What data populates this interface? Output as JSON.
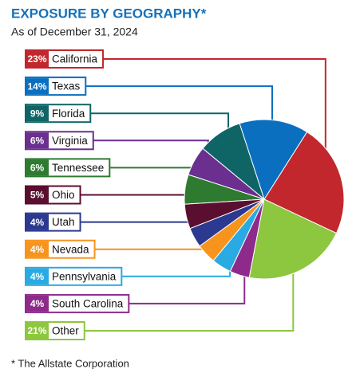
{
  "chart_data": {
    "type": "pie",
    "title": "EXPOSURE BY GEOGRAPHY*",
    "subtitle": "As of December 31, 2024",
    "footnote": "* The Allstate Corporation",
    "categories": [
      "California",
      "Texas",
      "Florida",
      "Virginia",
      "Tennessee",
      "Ohio",
      "Utah",
      "Nevada",
      "Pennsylvania",
      "South Carolina",
      "Other"
    ],
    "values": [
      23,
      14,
      9,
      6,
      6,
      5,
      4,
      4,
      4,
      4,
      21
    ],
    "value_labels": [
      "23%",
      "14%",
      "9%",
      "6%",
      "6%",
      "5%",
      "4%",
      "4%",
      "4%",
      "4%",
      "21%"
    ],
    "colors": [
      "#c1272d",
      "#0b6fc0",
      "#0f6566",
      "#6a2f8f",
      "#2e7a30",
      "#5b0f30",
      "#2b3990",
      "#f7941d",
      "#2aaae2",
      "#8e2a8c",
      "#8dc63f"
    ]
  }
}
